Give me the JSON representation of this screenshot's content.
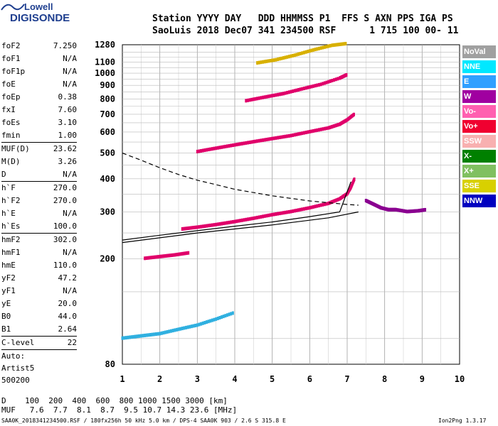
{
  "logo": {
    "line1": "Lowell",
    "line2": "DIGISONDE"
  },
  "header": {
    "line1": "Station YYYY DAY   DDD HHMMSS P1  FFS S AXN PPS IGA PS",
    "line2": "SaoLuis 2018 Dec07 341 234500 RSF      1 715 100 00- 11"
  },
  "params": [
    {
      "name": "foF2",
      "value": "7.250"
    },
    {
      "name": "foF1",
      "value": "N/A"
    },
    {
      "name": "foF1p",
      "value": "N/A"
    },
    {
      "name": "foE",
      "value": "N/A"
    },
    {
      "name": "foEp",
      "value": "0.38"
    },
    {
      "name": "fxI",
      "value": "7.60"
    },
    {
      "name": "foEs",
      "value": "3.10"
    },
    {
      "name": "fmin",
      "value": "1.00"
    },
    {
      "sep": true
    },
    {
      "name": "MUF(D)",
      "value": "23.62"
    },
    {
      "name": "M(D)",
      "value": "3.26"
    },
    {
      "name": "D",
      "value": "N/A"
    },
    {
      "sep": true
    },
    {
      "name": "h`F",
      "value": "270.0"
    },
    {
      "name": "h`F2",
      "value": "270.0"
    },
    {
      "name": "h`E",
      "value": "N/A"
    },
    {
      "name": "h`Es",
      "value": "100.0"
    },
    {
      "sep": true
    },
    {
      "name": "hmF2",
      "value": "302.0"
    },
    {
      "name": "hmF1",
      "value": "N/A"
    },
    {
      "name": "hmE",
      "value": "110.0"
    },
    {
      "name": "yF2",
      "value": "47.2"
    },
    {
      "name": "yF1",
      "value": "N/A"
    },
    {
      "name": "yE",
      "value": "20.0"
    },
    {
      "name": "B0",
      "value": "44.0"
    },
    {
      "name": "B1",
      "value": "2.64"
    },
    {
      "sep": true
    },
    {
      "name": "C-level",
      "value": "22"
    },
    {
      "sep": true
    },
    {
      "text": "Auto:"
    },
    {
      "text": "Artist5"
    },
    {
      "text": "500200"
    }
  ],
  "legend": [
    {
      "label": "NoVal",
      "bg": "#a0a0a0",
      "fg": "#ffffff"
    },
    {
      "label": "NNE",
      "bg": "#00e8ff",
      "fg": "#ffffff"
    },
    {
      "label": "E",
      "bg": "#30a0ff",
      "fg": "#ffffff"
    },
    {
      "label": "W",
      "bg": "#a000a0",
      "fg": "#ffffff"
    },
    {
      "label": "Vo-",
      "bg": "#ff60b0",
      "fg": "#ffffff"
    },
    {
      "label": "Vo+",
      "bg": "#f00030",
      "fg": "#ffffff"
    },
    {
      "label": "SSW",
      "bg": "#f8b0b0",
      "fg": "#ffffff"
    },
    {
      "label": "X-",
      "bg": "#008000",
      "fg": "#ffffff"
    },
    {
      "label": "X+",
      "bg": "#80c060",
      "fg": "#ffffff"
    },
    {
      "label": "SSE",
      "bg": "#d8d000",
      "fg": "#ffffff"
    },
    {
      "label": "NNW",
      "bg": "#0000c0",
      "fg": "#ffffff"
    }
  ],
  "bottom": {
    "d_line": "D    100  200  400  600  800 1000 1500 3000 [km]",
    "muf_line": "MUF   7.6  7.7  8.1  8.7  9.5 10.7 14.3 23.6 [MHz]",
    "footer": "SAA0K_2018341234500.RSF / 180fx256h 50 kHz 5.0 km / DPS-4 SAA0K 903 / 2.6 S 315.8 E",
    "footer_right": "Ion2Png 1.3.17"
  },
  "chart_data": {
    "type": "scatter",
    "xlabel": "",
    "ylabel": "",
    "xlim": [
      1,
      10
    ],
    "xticks": [
      1,
      2,
      3,
      4,
      5,
      6,
      7,
      8,
      9,
      10
    ],
    "ylim_display": [
      80,
      1280
    ],
    "yscale": "log",
    "yticks": [
      80,
      200,
      300,
      400,
      500,
      600,
      700,
      800,
      900,
      1000,
      1100,
      1280
    ],
    "grid": true,
    "traces": [
      {
        "name": "F2 O-trace",
        "color": "#e0006a",
        "x": [
          2.6,
          3.0,
          3.5,
          4.0,
          4.5,
          5.0,
          5.5,
          6.0,
          6.5,
          6.8,
          7.0,
          7.1,
          7.2
        ],
        "y": [
          258,
          262,
          268,
          275,
          283,
          292,
          300,
          310,
          322,
          335,
          350,
          370,
          400
        ]
      },
      {
        "name": "F2 X-trace",
        "color": "#8a0090",
        "x": [
          7.5,
          7.7,
          7.9,
          8.1,
          8.3,
          8.6,
          8.9,
          9.1
        ],
        "y": [
          330,
          320,
          310,
          305,
          305,
          300,
          302,
          305
        ]
      },
      {
        "name": "2F",
        "color": "#e0006a",
        "x": [
          3.0,
          3.5,
          4.0,
          4.5,
          5.0,
          5.5,
          6.0,
          6.5,
          6.8,
          7.0,
          7.2
        ],
        "y": [
          505,
          520,
          535,
          550,
          565,
          580,
          600,
          620,
          640,
          665,
          700
        ]
      },
      {
        "name": "3F",
        "color": "#e0006a",
        "x": [
          4.3,
          4.8,
          5.3,
          5.8,
          6.3,
          6.8,
          7.0
        ],
        "y": [
          785,
          810,
          835,
          870,
          905,
          955,
          985
        ]
      },
      {
        "name": "4F",
        "color": "#d8b000",
        "x": [
          4.6,
          5.1,
          5.6,
          6.1,
          6.6,
          7.0
        ],
        "y": [
          1090,
          1120,
          1165,
          1220,
          1270,
          1290
        ]
      },
      {
        "name": "Es",
        "color": "#30b0e0",
        "x": [
          1.0,
          1.5,
          2.0,
          2.5,
          3.0,
          3.5,
          4.0
        ],
        "y": [
          100,
          102,
          104,
          108,
          112,
          118,
          125
        ]
      },
      {
        "name": "F low",
        "color": "#e0006a",
        "x": [
          1.6,
          2.0,
          2.4,
          2.8
        ],
        "y": [
          200,
          203,
          206,
          210
        ]
      }
    ],
    "profile_curves": [
      {
        "name": "fit",
        "style": "solid",
        "x": [
          1.0,
          2.0,
          3.0,
          4.0,
          5.0,
          6.0,
          6.8,
          7.1
        ],
        "y": [
          235,
          245,
          255,
          265,
          275,
          288,
          300,
          390
        ]
      },
      {
        "name": "lower",
        "style": "solid",
        "x": [
          1.0,
          3.0,
          5.0,
          6.5,
          7.3
        ],
        "y": [
          230,
          250,
          268,
          285,
          300
        ]
      },
      {
        "name": "dashed",
        "style": "dashed",
        "x": [
          1.0,
          1.5,
          2.0,
          2.5,
          3.0,
          3.5,
          4.0,
          5.0,
          6.0,
          7.0,
          7.3
        ],
        "y": [
          500,
          470,
          440,
          415,
          395,
          380,
          365,
          345,
          330,
          320,
          318
        ]
      }
    ]
  }
}
